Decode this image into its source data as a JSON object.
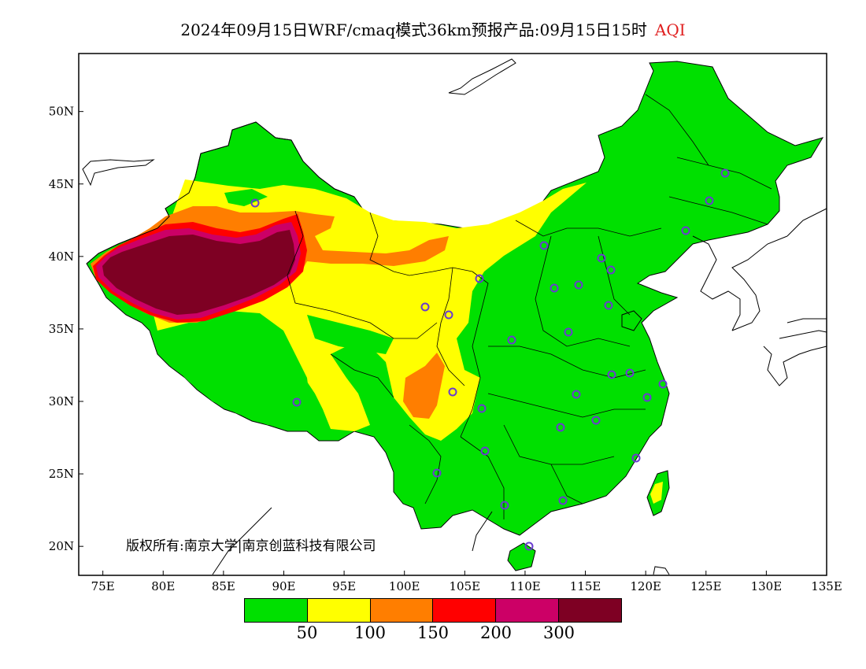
{
  "title": {
    "main": "2024年09月15日WRF/cmaq模式36km预报产品:09月15日15时",
    "variable": "AQI"
  },
  "map": {
    "lon_range": [
      73,
      135
    ],
    "lat_range": [
      18,
      54
    ],
    "lon_ticks": [
      "75E",
      "80E",
      "85E",
      "90E",
      "95E",
      "100E",
      "105E",
      "110E",
      "115E",
      "120E",
      "125E",
      "130E",
      "135E"
    ],
    "lat_ticks": [
      "20N",
      "25N",
      "30N",
      "35N",
      "40N",
      "45N",
      "50N"
    ],
    "copyright": "版权所有:南京大学|南京创蓝科技有限公司"
  },
  "legend": {
    "colors": [
      "#00e000",
      "#ffff00",
      "#ff7e00",
      "#ff0000",
      "#cc0066",
      "#7e0023"
    ],
    "labels": [
      "50",
      "100",
      "150",
      "200",
      "300"
    ]
  }
}
